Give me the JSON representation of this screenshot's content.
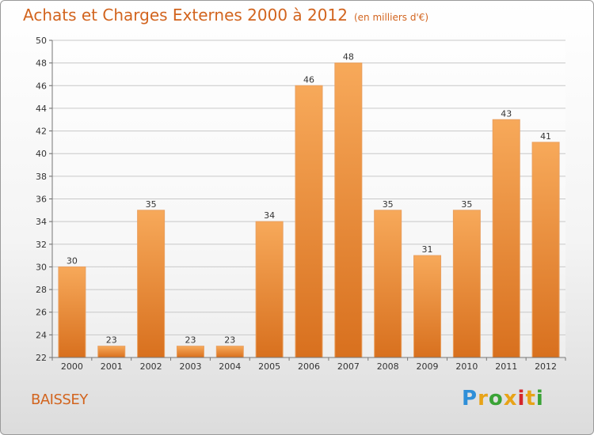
{
  "header": {
    "title": "Achats et Charges Externes 2000 à 2012",
    "subtitle": "(en milliers d'€)"
  },
  "footer": {
    "place": "BAISSEY",
    "logo_text": "Proxiti",
    "logo_colors": [
      "#2f8fd8",
      "#e8a317",
      "#3aa336",
      "#e8a317",
      "#d4262b",
      "#e8a317",
      "#3aa336"
    ]
  },
  "colors": {
    "title": "#d2641e",
    "bar_top": "#f7a95a",
    "bar_bottom": "#d8701e",
    "grid": "#c8c8c8"
  },
  "chart_data": {
    "type": "bar",
    "title": "Achats et Charges Externes 2000 à 2012",
    "subtitle": "(en milliers d'€)",
    "categories": [
      "2000",
      "2001",
      "2002",
      "2003",
      "2004",
      "2005",
      "2006",
      "2007",
      "2008",
      "2009",
      "2010",
      "2011",
      "2012"
    ],
    "values": [
      30,
      23,
      35,
      23,
      23,
      34,
      46,
      48,
      35,
      31,
      35,
      43,
      41
    ],
    "ylim": [
      22,
      50
    ],
    "yticks": [
      22,
      24,
      26,
      28,
      30,
      32,
      34,
      36,
      38,
      40,
      42,
      44,
      46,
      48,
      50
    ],
    "grid": true,
    "data_labels": true
  }
}
